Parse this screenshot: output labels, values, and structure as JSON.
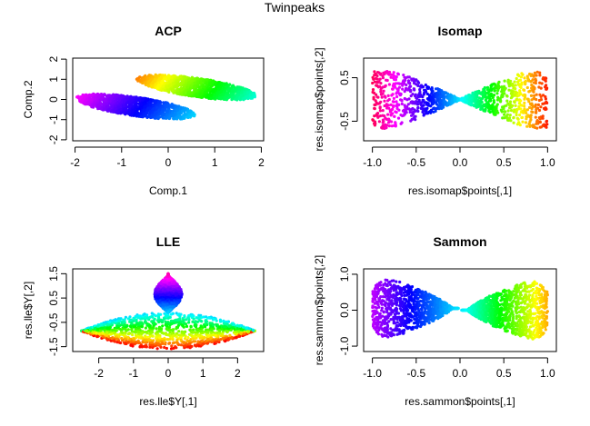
{
  "page_title": "Twinpeaks",
  "chart_data": [
    {
      "type": "scatter",
      "title": "ACP",
      "xlabel": "Comp.1",
      "ylabel": "Comp.2",
      "xlim": [
        -2.05,
        2.05
      ],
      "ylim": [
        -2.05,
        2.05
      ],
      "xticks": [
        -2,
        -1,
        0,
        1,
        2
      ],
      "yticks": [
        -2,
        -1,
        0,
        1,
        2
      ],
      "grid": false,
      "description_shapes": [
        {
          "kind": "blob",
          "cx": -0.7,
          "cy": -0.35,
          "rx": 1.35,
          "ry": 0.45,
          "angle_deg": -20,
          "hue_from": 300,
          "hue_to": 190,
          "gradient": "x"
        },
        {
          "kind": "blob",
          "cx": 0.6,
          "cy": 0.6,
          "rx": 1.35,
          "ry": 0.45,
          "angle_deg": -20,
          "hue_from": 30,
          "hue_to": 170,
          "gradient": "x"
        }
      ]
    },
    {
      "type": "scatter",
      "title": "Isomap",
      "xlabel": "res.isomap$points[,1]",
      "ylabel": "res.isomap$points[,2]",
      "xlim": [
        -1.1,
        1.1
      ],
      "ylim": [
        -0.95,
        0.95
      ],
      "xticks": [
        -1.0,
        -0.5,
        0.0,
        0.5,
        1.0
      ],
      "yticks": [
        -0.5,
        0.5
      ],
      "grid": false,
      "description_shapes": [
        {
          "kind": "bowtie",
          "left_x": -1.0,
          "right_x": 1.0,
          "center": [
            0,
            0
          ],
          "half_height": 0.85,
          "hue_left": 340,
          "hue_right": 5,
          "hue_center": 185
        }
      ]
    },
    {
      "type": "scatter",
      "title": "LLE",
      "xlabel": "res.lle$Y[,1]",
      "ylabel": "res.lle$Y[,2]",
      "xlim": [
        -2.75,
        2.75
      ],
      "ylim": [
        -1.7,
        1.7
      ],
      "xticks": [
        -2,
        -1,
        0,
        1,
        2
      ],
      "yticks": [
        -1.5,
        -0.5,
        0.5,
        1.5
      ],
      "grid": false,
      "description_shapes": [
        {
          "kind": "lens",
          "cx": 0,
          "cy": -0.85,
          "half_width": 2.5,
          "half_height": 0.75,
          "hue_top": 190,
          "hue_bottom": 0
        },
        {
          "kind": "drop",
          "cx": 0,
          "top": 1.5,
          "bottom": -0.1,
          "half_width": 0.4,
          "hue_top": 320,
          "hue_bottom": 190
        }
      ]
    },
    {
      "type": "scatter",
      "title": "Sammon",
      "xlabel": "res.sammon$points[,1]",
      "ylabel": "res.sammon$points[,2]",
      "xlim": [
        -1.1,
        1.1
      ],
      "ylim": [
        -1.15,
        1.15
      ],
      "xticks": [
        -1.0,
        -0.5,
        0.0,
        0.5,
        1.0
      ],
      "yticks": [
        -1.0,
        0.0,
        1.0
      ],
      "grid": false,
      "description_shapes": [
        {
          "kind": "teardrop",
          "tip": [
            0,
            0
          ],
          "far": -1.0,
          "hue_from": 285,
          "hue_to": 185
        },
        {
          "kind": "teardrop",
          "tip": [
            0,
            0
          ],
          "far": 1.0,
          "hue_from": 185,
          "hue_to": 40
        }
      ]
    }
  ]
}
